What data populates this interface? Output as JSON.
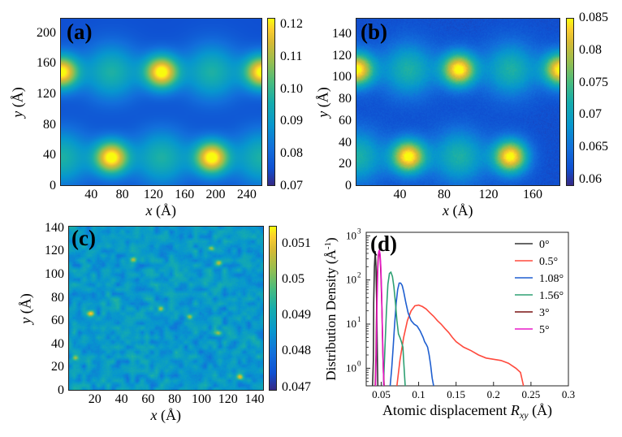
{
  "chart_data": [
    {
      "type": "heatmap",
      "panel_label": "(a)",
      "x_ticks": [
        "40",
        "80",
        "120",
        "160",
        "200",
        "240"
      ],
      "x_tick_values": [
        40,
        80,
        120,
        160,
        200,
        240
      ],
      "xlim": [
        0,
        260
      ],
      "y_ticks": [
        "0",
        "40",
        "80",
        "120",
        "160",
        "200"
      ],
      "y_tick_values": [
        0,
        40,
        80,
        120,
        160,
        200
      ],
      "ylim": [
        0,
        220
      ],
      "xlabel_var": "x",
      "xlabel_unit": " (Å)",
      "ylabel_var": "y",
      "ylabel_unit": " (Å)",
      "colorbar_ticks": [
        "0.12",
        "0.11",
        "0.10",
        "0.09",
        "0.08",
        "0.07"
      ],
      "colorbar_tick_values": [
        0.12,
        0.11,
        0.1,
        0.09,
        0.08,
        0.07
      ],
      "colorbar_range": [
        0.07,
        0.122
      ],
      "hotspots": [
        [
          0,
          150
        ],
        [
          130,
          150
        ],
        [
          260,
          150
        ],
        [
          65,
          37
        ],
        [
          195,
          37
        ]
      ],
      "secondary_spots": [
        [
          65,
          150
        ],
        [
          195,
          150
        ],
        [
          0,
          37
        ],
        [
          130,
          37
        ],
        [
          260,
          37
        ]
      ]
    },
    {
      "type": "heatmap",
      "panel_label": "(b)",
      "x_ticks": [
        "40",
        "80",
        "120",
        "160"
      ],
      "x_tick_values": [
        40,
        80,
        120,
        160
      ],
      "xlim": [
        0,
        185
      ],
      "y_ticks": [
        "0",
        "20",
        "40",
        "60",
        "80",
        "100",
        "120",
        "140"
      ],
      "y_tick_values": [
        0,
        20,
        40,
        60,
        80,
        100,
        120,
        140
      ],
      "ylim": [
        0,
        155
      ],
      "xlabel_var": "x",
      "xlabel_unit": " (Å)",
      "ylabel_var": "y",
      "ylabel_unit": " (Å)",
      "colorbar_ticks": [
        "0.085",
        "0.08",
        "0.075",
        "0.07",
        "0.065",
        "0.06"
      ],
      "colorbar_tick_values": [
        0.085,
        0.08,
        0.075,
        0.07,
        0.065,
        0.06
      ],
      "colorbar_range": [
        0.059,
        0.085
      ],
      "hotspots": [
        [
          0,
          108
        ],
        [
          93,
          108
        ],
        [
          186,
          108
        ],
        [
          47,
          27
        ],
        [
          140,
          27
        ]
      ],
      "secondary_spots": [
        [
          47,
          108
        ],
        [
          140,
          108
        ],
        [
          0,
          27
        ],
        [
          93,
          27
        ]
      ]
    },
    {
      "type": "heatmap",
      "panel_label": "(c)",
      "x_ticks": [
        "20",
        "40",
        "60",
        "80",
        "100",
        "120",
        "140"
      ],
      "x_tick_values": [
        20,
        40,
        60,
        80,
        100,
        120,
        140
      ],
      "xlim": [
        0,
        147
      ],
      "y_ticks": [
        "0",
        "20",
        "40",
        "60",
        "80",
        "100",
        "120",
        "140"
      ],
      "y_tick_values": [
        0,
        20,
        40,
        60,
        80,
        100,
        120,
        140
      ],
      "ylim": [
        0,
        142
      ],
      "xlabel_var": "x",
      "xlabel_unit": " (Å)",
      "ylabel_var": "y",
      "ylabel_unit": " (Å)",
      "colorbar_ticks": [
        "0.051",
        "0.05",
        "0.049",
        "0.048",
        "0.047"
      ],
      "colorbar_tick_values": [
        0.051,
        0.05,
        0.049,
        0.048,
        0.047
      ],
      "colorbar_range": [
        0.0469,
        0.0515
      ]
    },
    {
      "type": "line",
      "panel_label": "(d)",
      "xlabel_text": "Atomic displacement ",
      "xlabel_var": "R",
      "xlabel_sub": "xy",
      "xlabel_unit": " (Å)",
      "ylabel_text": "Distribution Density (Å",
      "ylabel_sup": "-1",
      "ylabel_close": ")",
      "x_scale": "linear",
      "y_scale": "log",
      "xlim": [
        0.03,
        0.3
      ],
      "ylim": [
        0.4,
        1200
      ],
      "x_ticks": [
        "0.05",
        "0.1",
        "0.15",
        "0.2",
        "0.25",
        "0.3"
      ],
      "x_tick_values": [
        0.05,
        0.1,
        0.15,
        0.2,
        0.25,
        0.3
      ],
      "y_ticks": [
        "10",
        "10",
        "10",
        "10"
      ],
      "y_tick_exponents": [
        "0",
        "1",
        "2",
        "3"
      ],
      "y_tick_values": [
        1,
        10,
        100,
        1000
      ],
      "legend_position": "top-right",
      "series": [
        {
          "name": "0°",
          "color": "#333333",
          "x": [
            0.0385,
            0.0395,
            0.04,
            0.041,
            0.042,
            0.043,
            0.044,
            0.045,
            0.0455
          ],
          "y": [
            0.4,
            1.5,
            30,
            200,
            450,
            200,
            30,
            1.5,
            0.4
          ]
        },
        {
          "name": "0.5°",
          "color": "#ff4a3d",
          "x": [
            0.071,
            0.075,
            0.08,
            0.085,
            0.09,
            0.095,
            0.1,
            0.105,
            0.11,
            0.115,
            0.12,
            0.125,
            0.13,
            0.135,
            0.14,
            0.145,
            0.15,
            0.16,
            0.17,
            0.18,
            0.19,
            0.2,
            0.21,
            0.22,
            0.23,
            0.236,
            0.24
          ],
          "y": [
            0.4,
            1.5,
            5,
            12,
            20,
            26,
            27,
            25,
            22,
            18,
            15,
            12,
            10,
            8,
            6.5,
            5,
            4,
            3,
            2.5,
            2,
            1.7,
            1.6,
            1.5,
            1.3,
            1.0,
            0.8,
            0.4
          ]
        },
        {
          "name": "1.08°",
          "color": "#1f5fd0",
          "x": [
            0.062,
            0.064,
            0.066,
            0.068,
            0.07,
            0.072,
            0.074,
            0.076,
            0.078,
            0.08,
            0.083,
            0.086,
            0.09,
            0.094,
            0.098,
            0.102,
            0.106,
            0.108,
            0.11,
            0.112,
            0.114,
            0.116,
            0.118,
            0.12
          ],
          "y": [
            0.4,
            1,
            3,
            10,
            30,
            60,
            85,
            85,
            75,
            55,
            30,
            18,
            12,
            10,
            9,
            7,
            5,
            4,
            3.5,
            3,
            2,
            1.2,
            0.6,
            0.4
          ]
        },
        {
          "name": "1.56°",
          "color": "#2ea073",
          "x": [
            0.053,
            0.055,
            0.057,
            0.059,
            0.061,
            0.063,
            0.065,
            0.067,
            0.069,
            0.071,
            0.073,
            0.075,
            0.077,
            0.079,
            0.08,
            0.081,
            0.082
          ],
          "y": [
            0.4,
            3,
            20,
            80,
            140,
            150,
            120,
            70,
            30,
            12,
            6,
            5,
            4,
            3,
            1.5,
            0.8,
            0.4
          ]
        },
        {
          "name": "3°",
          "color": "#7a1212",
          "x": [
            0.042,
            0.043,
            0.044,
            0.045,
            0.046,
            0.047,
            0.048,
            0.049,
            0.05,
            0.051,
            0.052,
            0.053,
            0.054
          ],
          "y": [
            0.4,
            2,
            30,
            150,
            350,
            450,
            400,
            250,
            90,
            20,
            3,
            0.8,
            0.4
          ]
        },
        {
          "name": "5°",
          "color": "#e81ac8",
          "x": [
            0.0425,
            0.0435,
            0.0445,
            0.0455,
            0.0465,
            0.0475,
            0.0485,
            0.0495,
            0.0505,
            0.0515,
            0.0525,
            0.0535
          ],
          "y": [
            0.4,
            2.5,
            35,
            180,
            400,
            480,
            380,
            200,
            60,
            10,
            1.5,
            0.4
          ]
        }
      ]
    }
  ]
}
